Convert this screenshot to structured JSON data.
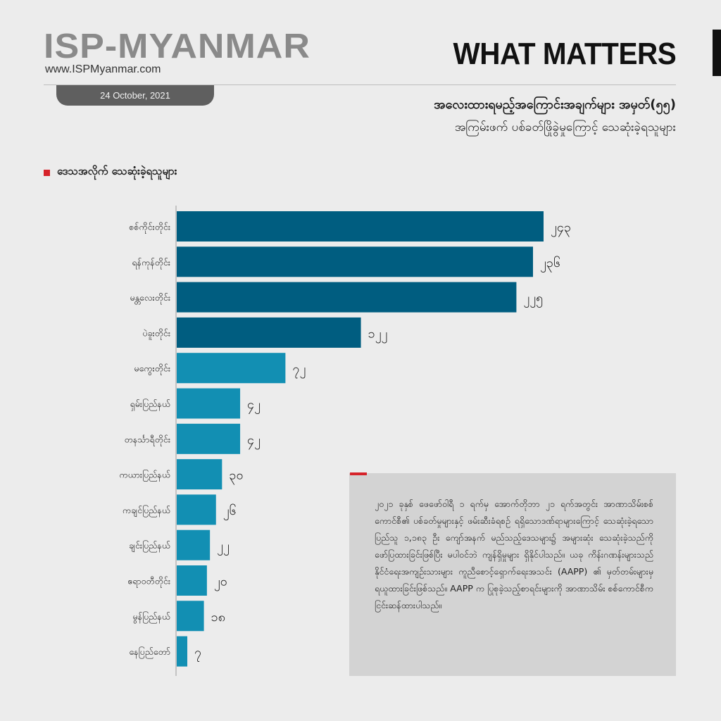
{
  "header": {
    "brand": "ISP-MYANMAR",
    "url": "www.ISPMyanmar.com",
    "date": "24 October, 2021",
    "section": "WHAT MATTERS",
    "headline": "အလေးထားရမည့်အကြောင်းအချက်များ အမှတ်(၅၅)",
    "subheadline": "အကြမ်းဖက် ပစ်ခတ်ဖြိုခွဲမှုကြောင့် သေဆုံးခဲ့ရသူများ"
  },
  "chart_data": {
    "type": "bar",
    "orientation": "horizontal",
    "title": "ဒေသအလိုက် သေဆုံးခဲ့ရသူများ",
    "categories": [
      "စစ်ကိုင်းတိုင်း",
      "ရန်ကုန်တိုင်း",
      "မန္တလေးတိုင်း",
      "ပဲခူးတိုင်း",
      "မကွေးတိုင်း",
      "ရှမ်းပြည်နယ်",
      "တနင်္သာရီတိုင်း",
      "ကယားပြည်နယ်",
      "ကချင်ပြည်နယ်",
      "ချင်းပြည်နယ်",
      "ဧရာဝတီတိုင်း",
      "မွန်ပြည်နယ်",
      "နေပြည်တော်"
    ],
    "values": [
      243,
      236,
      225,
      122,
      72,
      42,
      42,
      30,
      26,
      22,
      20,
      18,
      7
    ],
    "value_labels": [
      "၂၄၃",
      "၂၃၆",
      "၂၂၅",
      "၁၂၂",
      "၇၂",
      "၄၂",
      "၄၂",
      "၃၀",
      "၂၆",
      "၂၂",
      "၂၀",
      "၁၈",
      "၇"
    ],
    "xlim": [
      0,
      250
    ],
    "colors": {
      "top": "#005d80",
      "rest": "#128fb3"
    },
    "grid": false,
    "legend": "none"
  },
  "note": {
    "text": "၂၀၂၁ ခုနှစ် ဖေဖော်ဝါရီ ၁ ရက်မှ အောက်တိုဘာ ၂၁ ရက်အတွင်း အာဏာသိမ်းစစ်ကောင်စီ၏ ပစ်ခတ်မှုများနှင့် ဖမ်းဆီးခံရစဉ် ရရှိသောဒဏ်ရာများကြောင့် သေဆုံးခဲ့ရသော ပြည်သူ ၁,၁၈၃ ဦး ကျော်အနက် မည်သည့်ဒေသများ၌ အများဆုံး သေဆုံးခဲ့သည်ကို ဖော်ပြထားခြင်းဖြစ်ပြီး မပါဝင်ဘဲ ကျန်ရှိမှုများ ရှိနိုင်ပါသည်။ ယခု ကိန်းဂဏန်းများသည် နိုင်ငံရေးအကျဉ်းသားများ ကူညီစောင့်ရှောက်ရေးအသင်း (AAPP) ၏ မှတ်တမ်းများမှ ရယူထားခြင်းဖြစ်သည်။ AAPP က ပြုစုခဲ့သည့်စာရင်းများကို အာဏာသိမ်း စစ်ကောင်စီက ငြင်းဆန်ထားပါသည်။"
  }
}
